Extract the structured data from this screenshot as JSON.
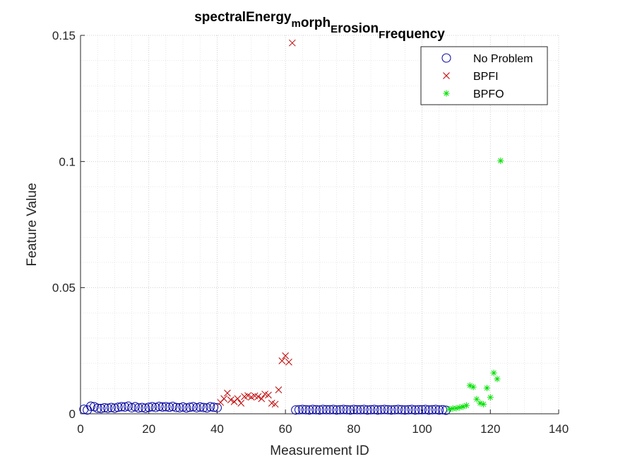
{
  "chart_data": {
    "type": "scatter",
    "title": {
      "parts": [
        {
          "text": "spectralEnergy",
          "sub": false
        },
        {
          "text": "m",
          "sub": true
        },
        {
          "text": "orph",
          "sub": false
        },
        {
          "text": "E",
          "sub": true
        },
        {
          "text": "rosion",
          "sub": false
        },
        {
          "text": "F",
          "sub": true
        },
        {
          "text": "requency",
          "sub": false
        }
      ]
    },
    "xlabel": "Measurement ID",
    "ylabel": "Feature Value",
    "xlim": [
      0,
      140
    ],
    "ylim": [
      0,
      0.15
    ],
    "xticks": [
      0,
      20,
      40,
      60,
      80,
      100,
      120,
      140
    ],
    "xtick_labels": [
      "0",
      "20",
      "40",
      "60",
      "80",
      "100",
      "120",
      "140"
    ],
    "yticks": [
      0,
      0.05,
      0.1,
      0.15
    ],
    "ytick_labels": [
      "0",
      "0.05",
      "0.1",
      "0.15"
    ],
    "grid": true,
    "minor_grid": true,
    "legend_position": "top-right",
    "series": [
      {
        "name": "No Problem",
        "marker": "circle",
        "color": "#0000a0",
        "x": [
          1,
          2,
          3,
          4,
          5,
          6,
          7,
          8,
          9,
          10,
          11,
          12,
          13,
          14,
          15,
          16,
          17,
          18,
          19,
          20,
          21,
          22,
          23,
          24,
          25,
          26,
          27,
          28,
          29,
          30,
          31,
          32,
          33,
          34,
          35,
          36,
          37,
          38,
          39,
          40,
          63,
          64,
          65,
          66,
          67,
          68,
          69,
          70,
          71,
          72,
          73,
          74,
          75,
          76,
          77,
          78,
          79,
          80,
          81,
          82,
          83,
          84,
          85,
          86,
          87,
          88,
          89,
          90,
          91,
          92,
          93,
          94,
          95,
          96,
          97,
          98,
          99,
          100,
          101,
          102,
          103,
          104,
          105,
          106,
          107
        ],
        "y": [
          0.0018,
          0.0015,
          0.003,
          0.0028,
          0.0022,
          0.0021,
          0.0024,
          0.0022,
          0.0025,
          0.0022,
          0.0026,
          0.0028,
          0.0027,
          0.003,
          0.0024,
          0.0028,
          0.0023,
          0.0025,
          0.0022,
          0.0026,
          0.0028,
          0.0025,
          0.0029,
          0.0027,
          0.0028,
          0.0026,
          0.0029,
          0.0025,
          0.0024,
          0.0027,
          0.0023,
          0.0026,
          0.0028,
          0.0024,
          0.0027,
          0.0025,
          0.0023,
          0.0028,
          0.0026,
          0.0024,
          0.0015,
          0.0016,
          0.0017,
          0.0016,
          0.0015,
          0.0017,
          0.0016,
          0.0015,
          0.0017,
          0.0016,
          0.0016,
          0.0017,
          0.0015,
          0.0016,
          0.0017,
          0.0016,
          0.0015,
          0.0017,
          0.0016,
          0.0016,
          0.0017,
          0.0015,
          0.0016,
          0.0017,
          0.0015,
          0.0016,
          0.0017,
          0.0016,
          0.0015,
          0.0016,
          0.0017,
          0.0016,
          0.0015,
          0.0016,
          0.0017,
          0.0015,
          0.0016,
          0.0016,
          0.0017,
          0.0015,
          0.0016,
          0.0017,
          0.0015,
          0.0016,
          0.0014
        ]
      },
      {
        "name": "BPFI",
        "marker": "x",
        "color": "#c00000",
        "x": [
          41,
          42,
          43,
          44,
          45,
          46,
          47,
          48,
          49,
          50,
          51,
          52,
          53,
          54,
          55,
          56,
          57,
          58,
          59,
          60,
          61,
          62
        ],
        "y": [
          0.0045,
          0.006,
          0.0082,
          0.0055,
          0.0048,
          0.006,
          0.0042,
          0.0068,
          0.0072,
          0.0066,
          0.0071,
          0.0068,
          0.006,
          0.0078,
          0.0074,
          0.0042,
          0.0038,
          0.0095,
          0.021,
          0.023,
          0.0205,
          0.147
        ]
      },
      {
        "name": "BPFO",
        "marker": "star",
        "color": "#00e000",
        "x": [
          108,
          109,
          110,
          111,
          112,
          113,
          114,
          115,
          116,
          117,
          118,
          119,
          120,
          121,
          122,
          123
        ],
        "y": [
          0.0018,
          0.0021,
          0.0022,
          0.0025,
          0.0028,
          0.0033,
          0.0112,
          0.0106,
          0.0058,
          0.0042,
          0.0038,
          0.0102,
          0.0065,
          0.0162,
          0.0138,
          0.1003
        ]
      }
    ]
  }
}
